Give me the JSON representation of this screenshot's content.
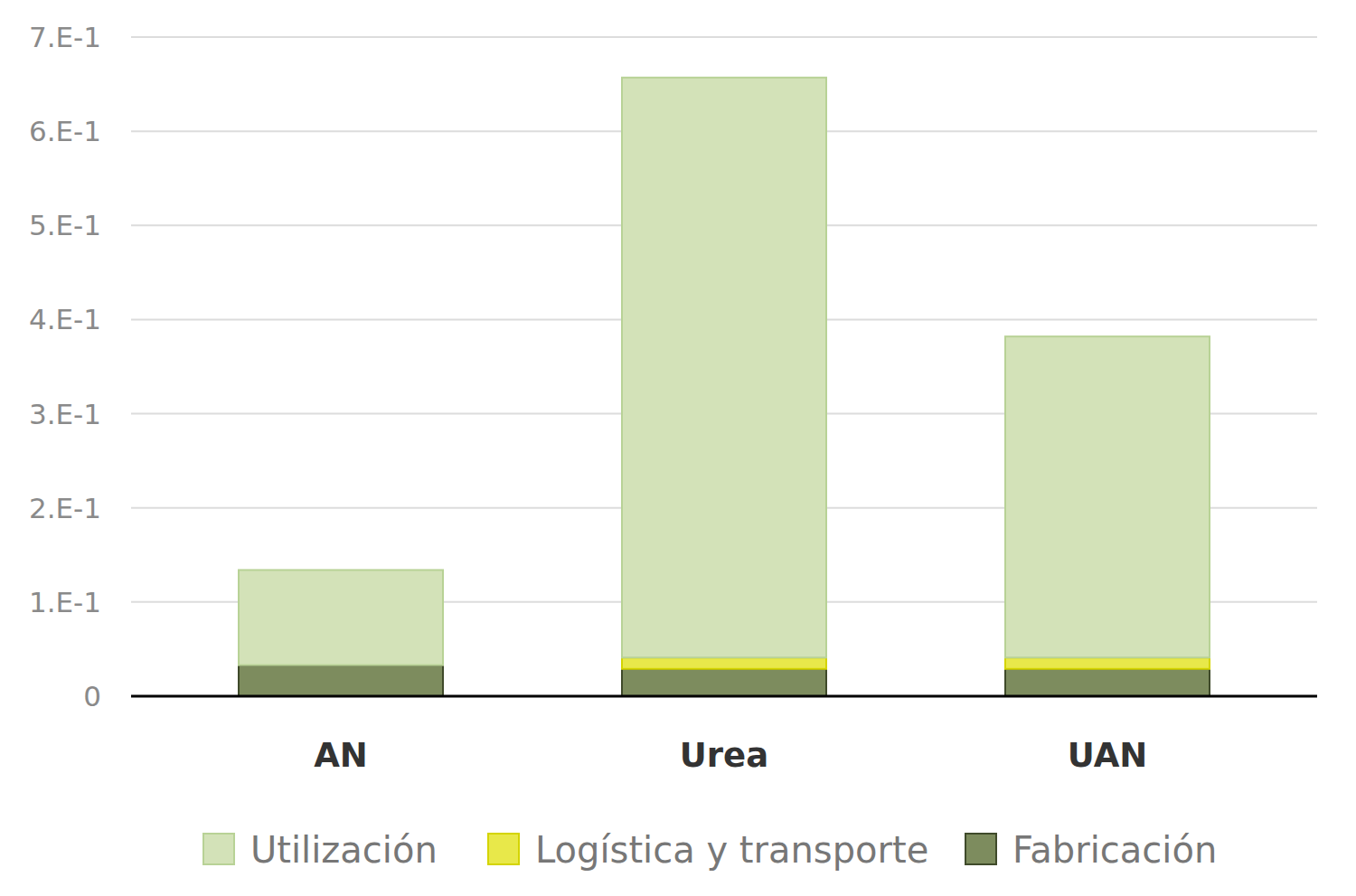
{
  "chart_data": {
    "type": "bar",
    "stacked": true,
    "grid": true,
    "legend": "bottom",
    "categories": [
      "AN",
      "Urea",
      "UAN"
    ],
    "series": [
      {
        "name": "Fabricación",
        "color": "#7d8c5e",
        "values": [
          0.033,
          0.029,
          0.029
        ]
      },
      {
        "name": "Logística y transporte",
        "color": "#e8e84a",
        "values": [
          0,
          0.012,
          0.012
        ]
      },
      {
        "name": "Utilización",
        "color": "#d3e2b8",
        "values": [
          0.101,
          0.616,
          0.341
        ]
      }
    ],
    "ylim": [
      0,
      0.7
    ],
    "yticks": [
      0,
      {
        "value": 0.1,
        "label": "1.E-1"
      },
      {
        "value": 0.2,
        "label": "2.E-1"
      },
      {
        "value": 0.3,
        "label": "3.E-1"
      },
      {
        "value": 0.4,
        "label": "4.E-1"
      },
      {
        "value": 0.5,
        "label": "5.E-1"
      },
      {
        "value": 0.6,
        "label": "6.E-1"
      },
      {
        "value": 0.7,
        "label": "7.E-1"
      }
    ]
  }
}
